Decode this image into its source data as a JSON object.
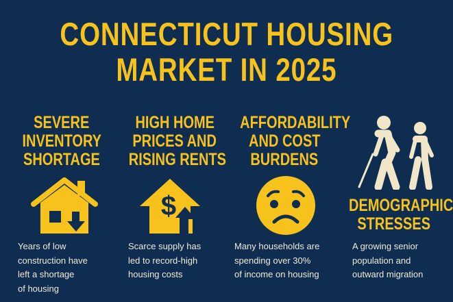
{
  "title": {
    "line1": "CONNECTICUT HOUSING",
    "line2": "MARKET IN 2025"
  },
  "colors": {
    "background": "#0e2d50",
    "accent": "#f6c21b",
    "figures": "#f1e6c8",
    "text": "#f1ead8"
  },
  "sections": [
    {
      "heading": [
        "SEVERE",
        "INVENTORY",
        "SHORTAGE"
      ],
      "icon": "house-down-arrow-icon",
      "body": [
        "Years of low",
        "construction have",
        "left a shortage",
        "of housing"
      ]
    },
    {
      "heading": [
        "HIGH HOME",
        "PRICES AND",
        "RISING RENTS"
      ],
      "icon": "house-dollar-up-arrow-icon",
      "body": [
        "Scarce supply has",
        "led to record-high",
        "housing costs"
      ]
    },
    {
      "heading": [
        "AFFORDABILITY",
        "AND COST",
        "BURDENS"
      ],
      "icon": "worried-face-icon",
      "body": [
        "Many households are",
        "spending over 30%",
        "of income on housing"
      ]
    },
    {
      "heading": [
        "DEMOGRAPHIC",
        "STRESSES"
      ],
      "icon": "senior-people-walking-icon",
      "body": [
        "A growing senior",
        "population and",
        "outward migration"
      ]
    }
  ]
}
